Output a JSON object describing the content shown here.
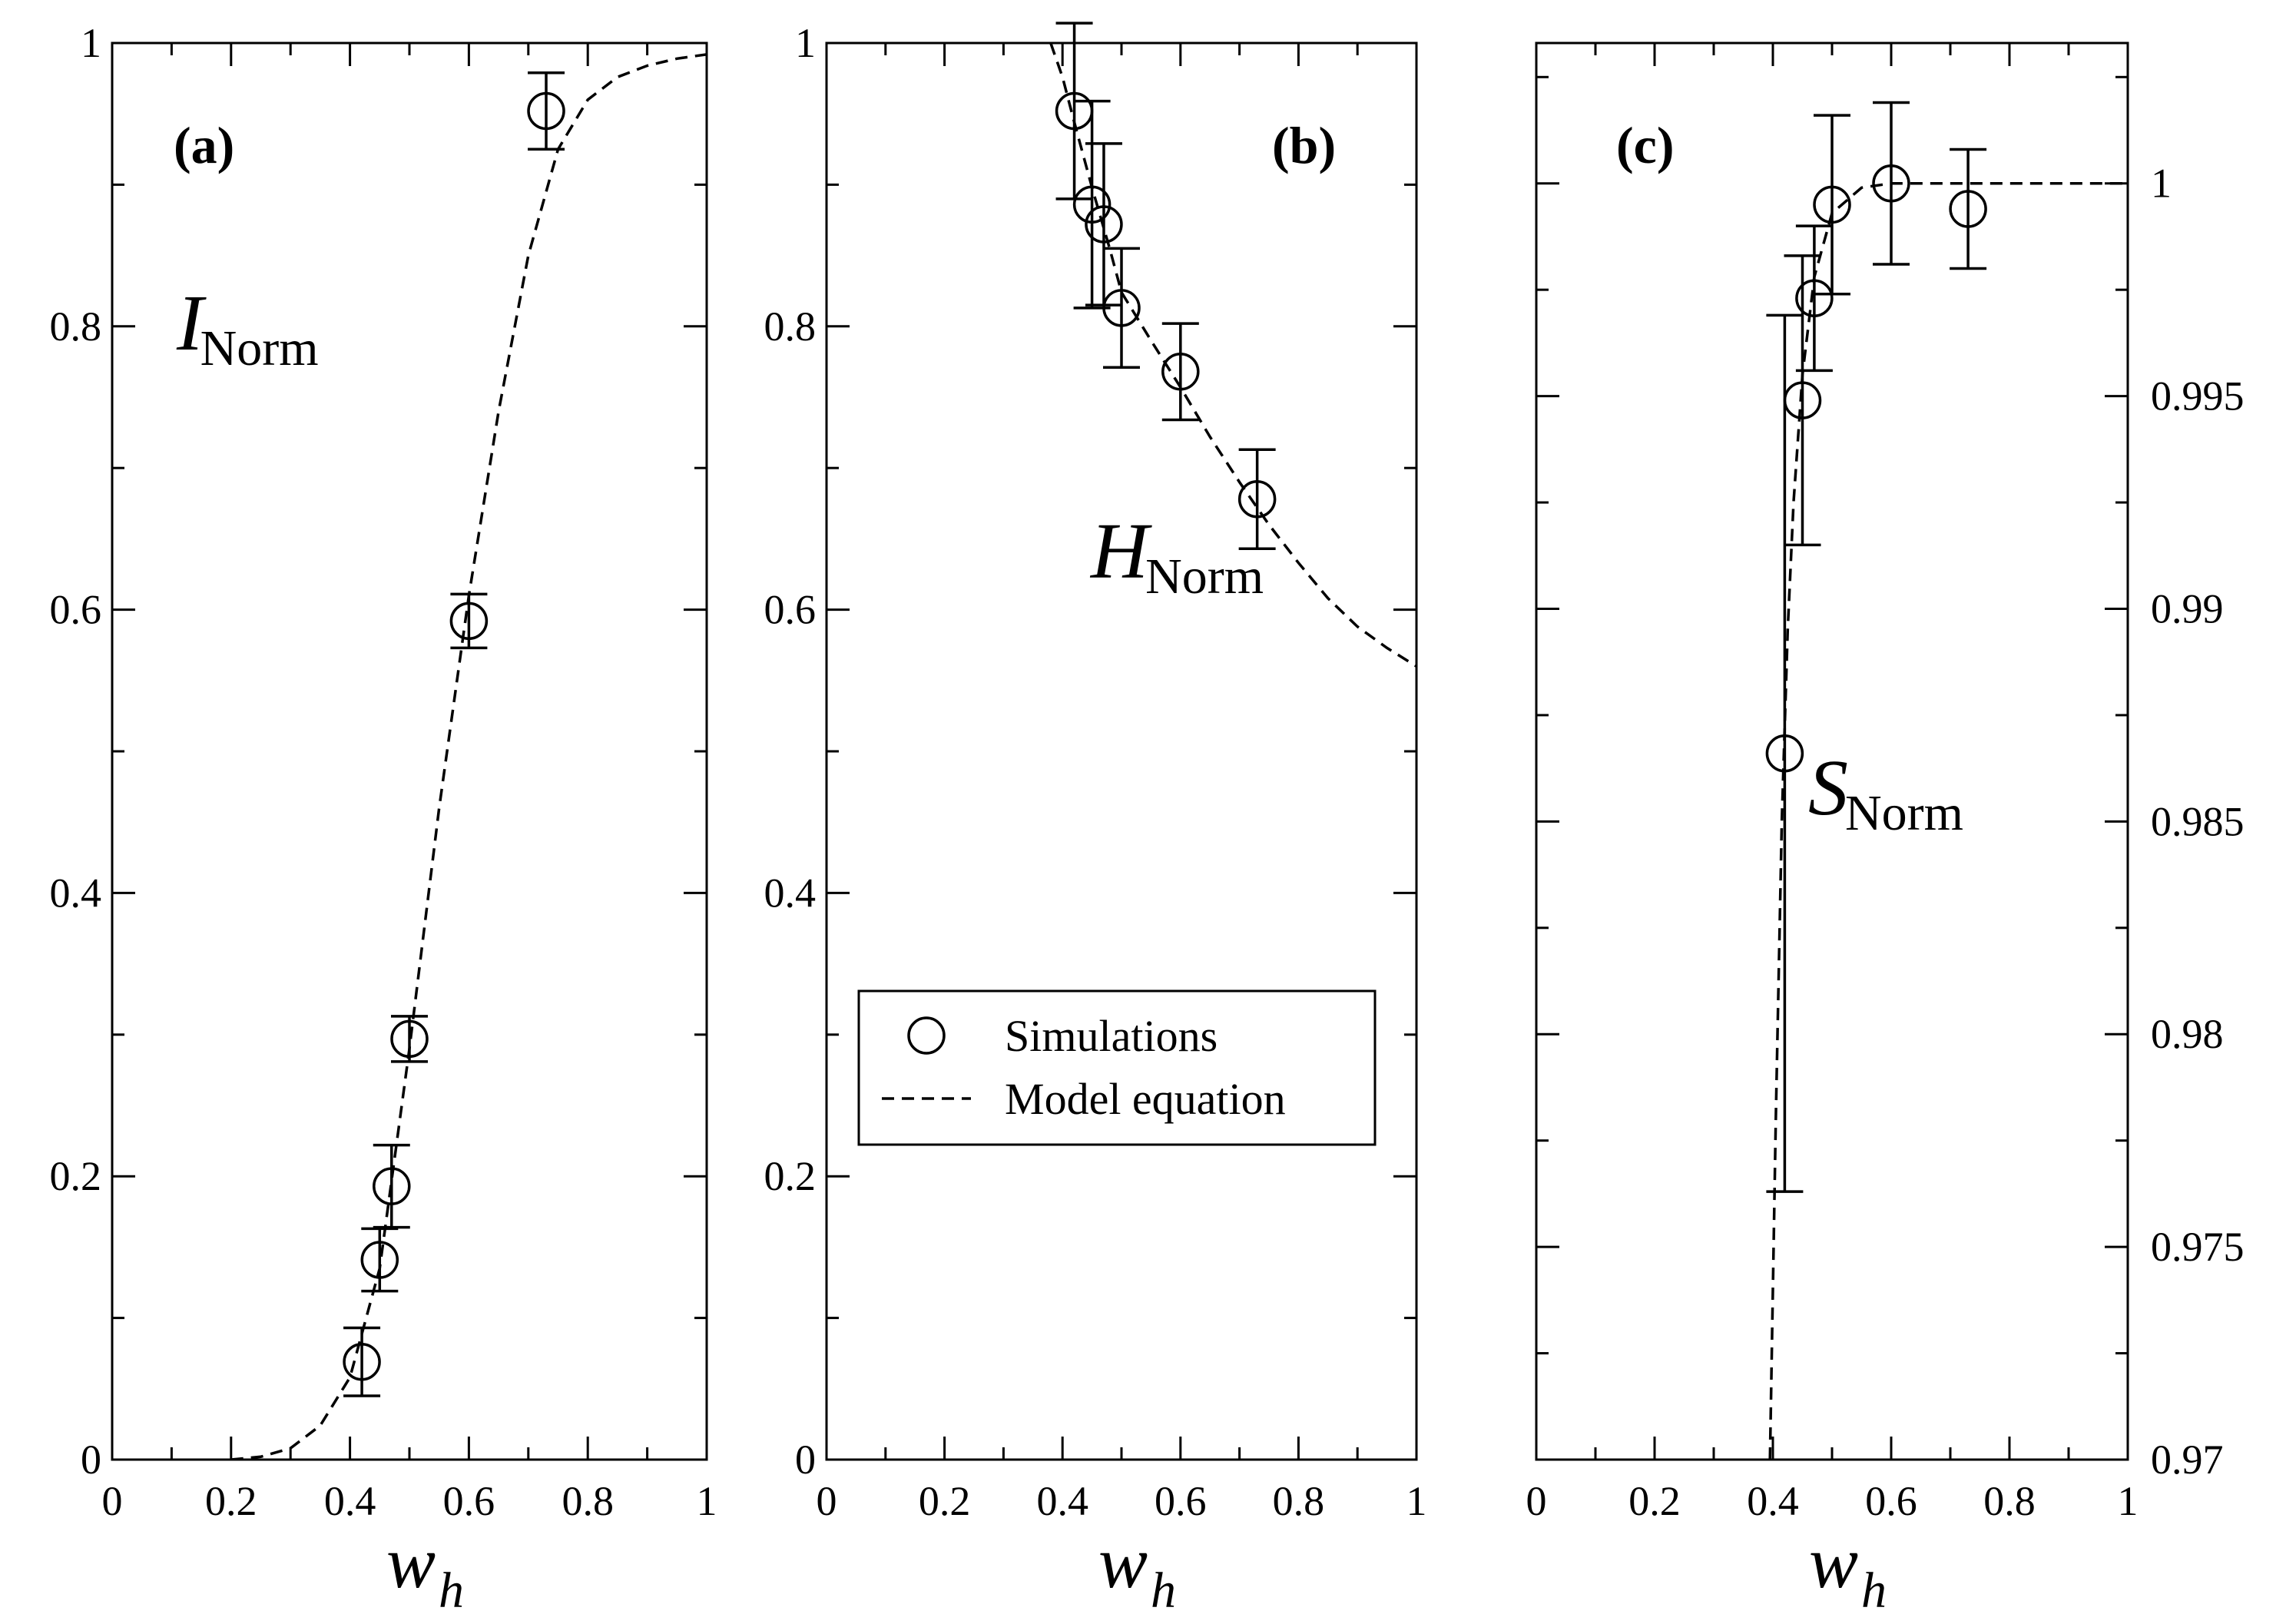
{
  "chart_data": [
    {
      "type": "scatter",
      "panel_label": "(a)",
      "series_label": {
        "main": "I",
        "sub": "Norm"
      },
      "xlabel": {
        "main": "w",
        "sub": "h"
      },
      "xlim": [
        0,
        1
      ],
      "ylim": [
        0,
        1
      ],
      "x_major_ticks": [
        0,
        0.2,
        0.4,
        0.6,
        0.8,
        1
      ],
      "x_tick_labels": [
        "0",
        "0.2",
        "0.4",
        "0.6",
        "0.8",
        "1"
      ],
      "y_major_ticks": [
        0,
        0.2,
        0.4,
        0.6,
        0.8,
        1
      ],
      "y_tick_labels": [
        "0",
        "0.2",
        "0.4",
        "0.6",
        "0.8",
        "1"
      ],
      "y_axis_side": "left",
      "simulations": [
        {
          "x": 0.42,
          "y": 0.069,
          "err": 0.024
        },
        {
          "x": 0.45,
          "y": 0.141,
          "err": 0.022
        },
        {
          "x": 0.47,
          "y": 0.193,
          "err": 0.029
        },
        {
          "x": 0.5,
          "y": 0.297,
          "err": 0.016
        },
        {
          "x": 0.6,
          "y": 0.592,
          "err": 0.019
        },
        {
          "x": 0.73,
          "y": 0.952,
          "err": 0.027
        }
      ],
      "model_equation": [
        [
          0.2,
          0.0
        ],
        [
          0.25,
          0.002
        ],
        [
          0.3,
          0.008
        ],
        [
          0.35,
          0.024
        ],
        [
          0.4,
          0.058
        ],
        [
          0.45,
          0.135
        ],
        [
          0.5,
          0.29
        ],
        [
          0.55,
          0.46
        ],
        [
          0.6,
          0.61
        ],
        [
          0.65,
          0.74
        ],
        [
          0.7,
          0.85
        ],
        [
          0.75,
          0.925
        ],
        [
          0.8,
          0.96
        ],
        [
          0.85,
          0.976
        ],
        [
          0.9,
          0.984
        ],
        [
          0.95,
          0.989
        ],
        [
          1.0,
          0.992
        ]
      ]
    },
    {
      "type": "scatter",
      "panel_label": "(b)",
      "series_label": {
        "main": "H",
        "sub": "Norm"
      },
      "xlabel": {
        "main": "w",
        "sub": "h"
      },
      "xlim": [
        0,
        1
      ],
      "ylim": [
        0,
        1
      ],
      "x_major_ticks": [
        0,
        0.2,
        0.4,
        0.6,
        0.8,
        1
      ],
      "x_tick_labels": [
        "0",
        "0.2",
        "0.4",
        "0.6",
        "0.8",
        "1"
      ],
      "y_major_ticks": [
        0,
        0.2,
        0.4,
        0.6,
        0.8,
        1
      ],
      "y_tick_labels": [
        "0",
        "0.2",
        "0.4",
        "0.6",
        "0.8",
        "1"
      ],
      "y_axis_side": "left",
      "simulations": [
        {
          "x": 0.42,
          "y": 0.952,
          "err": 0.062
        },
        {
          "x": 0.45,
          "y": 0.886,
          "err": 0.073
        },
        {
          "x": 0.47,
          "y": 0.872,
          "err": 0.057
        },
        {
          "x": 0.5,
          "y": 0.813,
          "err": 0.042
        },
        {
          "x": 0.6,
          "y": 0.768,
          "err": 0.034
        },
        {
          "x": 0.73,
          "y": 0.678,
          "err": 0.035
        }
      ],
      "model_equation": [
        [
          0.38,
          1.0
        ],
        [
          0.4,
          0.976
        ],
        [
          0.42,
          0.944
        ],
        [
          0.45,
          0.898
        ],
        [
          0.48,
          0.855
        ],
        [
          0.5,
          0.824
        ],
        [
          0.55,
          0.79
        ],
        [
          0.6,
          0.757
        ],
        [
          0.65,
          0.722
        ],
        [
          0.7,
          0.69
        ],
        [
          0.75,
          0.66
        ],
        [
          0.8,
          0.633
        ],
        [
          0.85,
          0.608
        ],
        [
          0.9,
          0.588
        ],
        [
          0.95,
          0.573
        ],
        [
          1.0,
          0.56
        ]
      ],
      "legend": {
        "position": "center",
        "entries": [
          {
            "label": "Simulations",
            "marker": "open-circle"
          },
          {
            "label": "Model equation",
            "marker": "dashed-line"
          }
        ]
      }
    },
    {
      "type": "scatter",
      "panel_label": "(c)",
      "series_label": {
        "main": "S",
        "sub": "Norm"
      },
      "xlabel": {
        "main": "w",
        "sub": "h"
      },
      "xlim": [
        0,
        1
      ],
      "ylim": [
        0.97,
        1.0033
      ],
      "x_major_ticks": [
        0,
        0.2,
        0.4,
        0.6,
        0.8,
        1
      ],
      "x_tick_labels": [
        "0",
        "0.2",
        "0.4",
        "0.6",
        "0.8",
        "1"
      ],
      "y_major_ticks": [
        0.97,
        0.975,
        0.98,
        0.985,
        0.99,
        0.995,
        1
      ],
      "y_tick_labels": [
        "0.97",
        "0.975",
        "0.98",
        "0.985",
        "0.99",
        "0.995",
        "1"
      ],
      "y_axis_side": "right",
      "simulations": [
        {
          "x": 0.42,
          "y": 0.9866,
          "err": 0.0103
        },
        {
          "x": 0.45,
          "y": 0.9949,
          "err": 0.0034
        },
        {
          "x": 0.47,
          "y": 0.9973,
          "err": 0.0017
        },
        {
          "x": 0.5,
          "y": 0.9995,
          "err": 0.0021
        },
        {
          "x": 0.6,
          "y": 1.0,
          "err": 0.0019
        },
        {
          "x": 0.73,
          "y": 0.9994,
          "err": 0.0014
        }
      ],
      "model_equation": [
        [
          0.395,
          0.97
        ],
        [
          0.405,
          0.978
        ],
        [
          0.415,
          0.985
        ],
        [
          0.425,
          0.9895
        ],
        [
          0.435,
          0.9925
        ],
        [
          0.45,
          0.9955
        ],
        [
          0.47,
          0.9978
        ],
        [
          0.5,
          0.9993
        ],
        [
          0.55,
          0.9999
        ],
        [
          0.6,
          1.0
        ],
        [
          0.7,
          1.0
        ],
        [
          0.8,
          1.0
        ],
        [
          0.9,
          1.0
        ],
        [
          1.0,
          1.0
        ]
      ]
    }
  ],
  "style": {
    "line_color": "#000000",
    "background": "#ffffff"
  }
}
